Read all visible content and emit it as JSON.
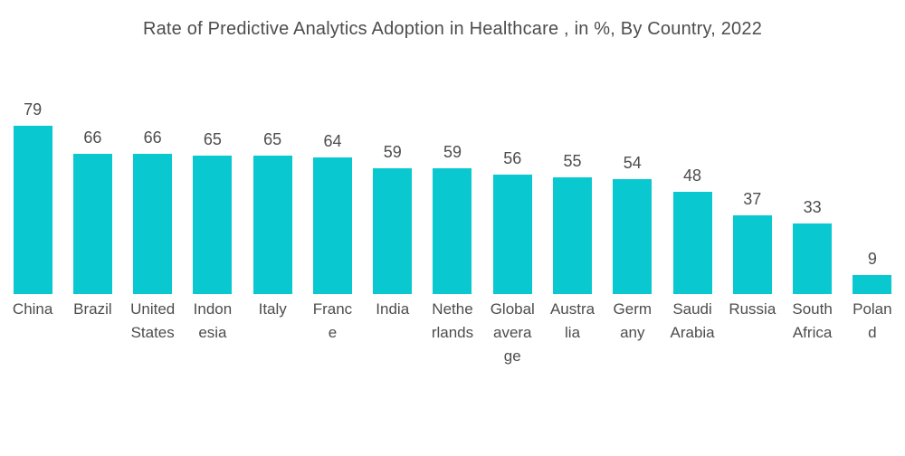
{
  "chart_data": {
    "type": "bar",
    "title": "Rate of Predictive Analytics Adoption in Healthcare , in %, By Country, 2022",
    "categories": [
      "China",
      "Brazil",
      "United States",
      "Indonesia",
      "Italy",
      "France",
      "India",
      "Netherlands",
      "Global average",
      "Australia",
      "Germany",
      "Saudi Arabia",
      "Russia",
      "South Africa",
      "Poland"
    ],
    "values": [
      79,
      66,
      66,
      65,
      65,
      64,
      59,
      59,
      56,
      55,
      54,
      48,
      37,
      33,
      9
    ],
    "display_labels": [
      "China",
      "Brazil",
      "United\nStates",
      "Indon\nesia",
      "Italy",
      "Franc\ne",
      "India",
      "Nethe\nrlands",
      "Global\navera\nge",
      "Austra\nlia",
      "Germ\nany",
      "Saudi\nArabia",
      "Russia",
      "South\nAfrica",
      "Polan\nd"
    ],
    "xlabel": "",
    "ylabel": "",
    "ylim": [
      0,
      79
    ],
    "grid": false,
    "legend": false,
    "value_labels_shown": true,
    "bar_color": "#09C8CF",
    "text_color": "#4d4d4d",
    "background_color": "#ffffff"
  }
}
